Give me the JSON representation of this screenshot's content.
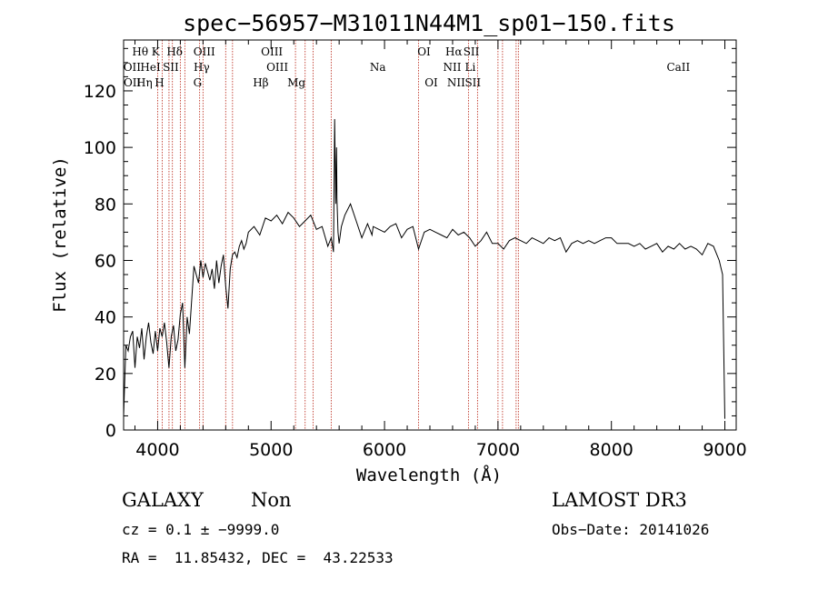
{
  "chart_data": {
    "type": "line",
    "title": "spec−56957−M31011N44M1_sp01−150.fits",
    "xlabel": "Wavelength (Å)",
    "ylabel": "Flux (relative)",
    "xlim": [
      3700,
      9100
    ],
    "ylim": [
      0,
      138
    ],
    "xticks": [
      4000,
      5000,
      6000,
      7000,
      8000,
      9000
    ],
    "yticks": [
      0,
      20,
      40,
      60,
      80,
      100,
      120
    ],
    "grid": false,
    "series": [
      {
        "x": [
          3700,
          3720,
          3740,
          3760,
          3780,
          3800,
          3820,
          3840,
          3860,
          3880,
          3900,
          3920,
          3940,
          3960,
          3980,
          4000,
          4020,
          4040,
          4060,
          4080,
          4100,
          4120,
          4140,
          4160,
          4180,
          4200,
          4220,
          4240,
          4260,
          4280,
          4300,
          4320,
          4340,
          4360,
          4380,
          4400,
          4420,
          4440,
          4460,
          4480,
          4500,
          4520,
          4540,
          4560,
          4580,
          4600,
          4620,
          4640,
          4660,
          4680,
          4700,
          4720,
          4740,
          4760,
          4780,
          4800,
          4850,
          4900,
          4950,
          5000,
          5050,
          5100,
          5150,
          5200,
          5250,
          5300,
          5350,
          5400,
          5450,
          5500,
          5530,
          5550,
          5560,
          5570,
          5577,
          5580,
          5590,
          5600,
          5620,
          5650,
          5700,
          5750,
          5800,
          5850,
          5890,
          5900,
          5950,
          6000,
          6050,
          6100,
          6150,
          6200,
          6250,
          6300,
          6350,
          6400,
          6450,
          6500,
          6550,
          6600,
          6650,
          6700,
          6750,
          6800,
          6850,
          6900,
          6950,
          7000,
          7050,
          7100,
          7150,
          7200,
          7250,
          7300,
          7350,
          7400,
          7450,
          7500,
          7550,
          7600,
          7650,
          7700,
          7750,
          7800,
          7850,
          7900,
          7950,
          8000,
          8050,
          8100,
          8150,
          8200,
          8250,
          8300,
          8350,
          8400,
          8450,
          8500,
          8550,
          8600,
          8650,
          8700,
          8750,
          8800,
          8850,
          8900,
          8950,
          8980,
          9000
        ],
        "values": [
          5,
          30,
          28,
          33,
          35,
          22,
          33,
          29,
          36,
          25,
          33,
          38,
          31,
          27,
          35,
          28,
          36,
          33,
          38,
          31,
          22,
          33,
          37,
          28,
          32,
          41,
          45,
          22,
          40,
          34,
          46,
          58,
          55,
          52,
          60,
          54,
          59,
          56,
          53,
          57,
          50,
          60,
          52,
          58,
          62,
          51,
          43,
          57,
          62,
          63,
          61,
          65,
          67,
          64,
          66,
          70,
          72,
          69,
          75,
          74,
          76,
          73,
          77,
          75,
          72,
          74,
          76,
          71,
          72,
          65,
          68,
          63,
          110,
          80,
          100,
          82,
          70,
          66,
          72,
          76,
          80,
          74,
          68,
          73,
          69,
          72,
          71,
          70,
          72,
          73,
          68,
          71,
          72,
          64,
          70,
          71,
          70,
          69,
          68,
          71,
          69,
          70,
          68,
          65,
          67,
          70,
          66,
          66,
          64,
          67,
          68,
          67,
          66,
          68,
          67,
          66,
          68,
          67,
          68,
          63,
          66,
          67,
          66,
          67,
          66,
          67,
          68,
          68,
          66,
          66,
          66,
          65,
          66,
          64,
          65,
          66,
          63,
          65,
          64,
          66,
          64,
          65,
          64,
          62,
          66,
          65,
          60,
          55,
          4
        ]
      }
    ],
    "emission_lines": [
      {
        "label": "Hθ",
        "x": 3798,
        "row": 0
      },
      {
        "label": "K",
        "x": 3934,
        "row": 0
      },
      {
        "label": "Hδ",
        "x": 4102,
        "row": 0
      },
      {
        "label": "OIII",
        "x": 4363,
        "row": 0
      },
      {
        "label": "OIII",
        "x": 4959,
        "row": 0
      },
      {
        "label": "OI",
        "x": 6300,
        "row": 0
      },
      {
        "label": "Hα",
        "x": 6563,
        "row": 0
      },
      {
        "label": "SII",
        "x": 6717,
        "row": 0
      },
      {
        "label": "OII",
        "x": 3727,
        "row": 1
      },
      {
        "label": "HeI",
        "x": 3889,
        "row": 1
      },
      {
        "label": "SII",
        "x": 4068,
        "row": 1
      },
      {
        "label": "Hγ",
        "x": 4340,
        "row": 1
      },
      {
        "label": "OIII",
        "x": 5007,
        "row": 1
      },
      {
        "label": "Na",
        "x": 5893,
        "row": 1
      },
      {
        "label": "NII",
        "x": 6548,
        "row": 1
      },
      {
        "label": "Li",
        "x": 6708,
        "row": 1
      },
      {
        "label": "CaII",
        "x": 8542,
        "row": 1
      },
      {
        "label": "OII",
        "x": 3729,
        "row": 2
      },
      {
        "label": "Hη",
        "x": 3835,
        "row": 2
      },
      {
        "label": "H",
        "x": 3968,
        "row": 2
      },
      {
        "label": "G",
        "x": 4304,
        "row": 2
      },
      {
        "label": "Hβ",
        "x": 4861,
        "row": 2
      },
      {
        "label": "Mg",
        "x": 5175,
        "row": 2
      },
      {
        "label": "OI",
        "x": 6364,
        "row": 2
      },
      {
        "label": "NII",
        "x": 6583,
        "row": 2
      },
      {
        "label": "SII",
        "x": 6731,
        "row": 2
      }
    ],
    "line_positions": [
      4000,
      4040,
      4100,
      4130,
      4200,
      4240,
      4370,
      4400,
      4600,
      4660,
      5215,
      5300,
      5370,
      5530,
      6300,
      6740,
      6820,
      7000,
      7040,
      7160,
      7180
    ]
  },
  "footer": {
    "class_label": "GALAXY",
    "subclass": "Non",
    "survey": "LAMOST DR3",
    "cz_line": "cz = 0.1 ± −9999.0",
    "obs_date": "Obs−Date: 20141026",
    "coords": "RA =  11.85432, DEC =  43.22533"
  },
  "colors": {
    "line_marker": "#c0392b",
    "spectrum": "#000000"
  }
}
